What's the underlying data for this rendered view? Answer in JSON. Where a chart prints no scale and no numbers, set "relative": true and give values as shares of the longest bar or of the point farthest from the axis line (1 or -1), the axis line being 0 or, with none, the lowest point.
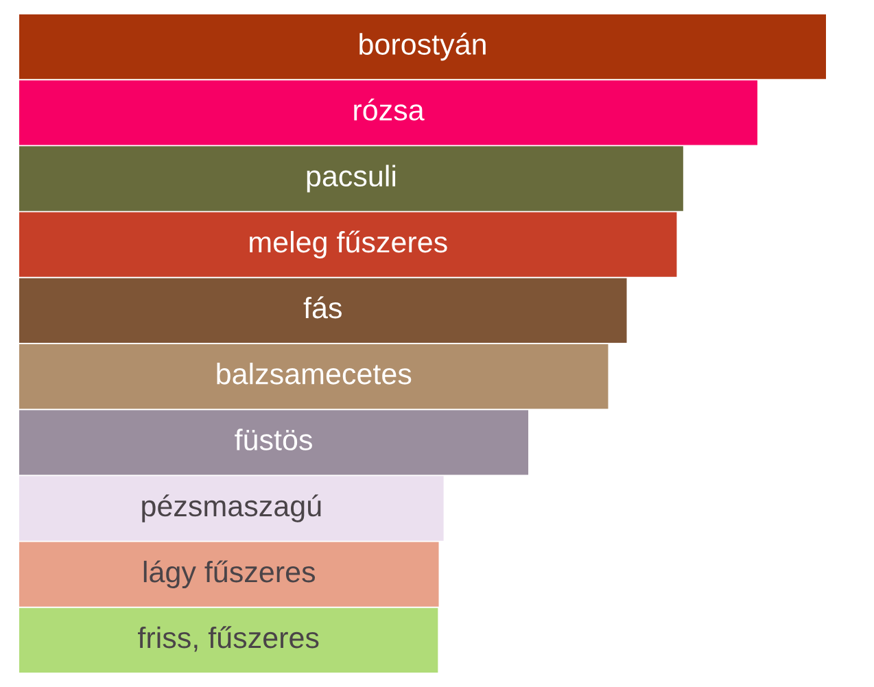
{
  "chart_data": {
    "type": "bar",
    "orientation": "horizontal",
    "relative": true,
    "categories": [
      "borostyán",
      "rózsa",
      "pacsuli",
      "meleg fűszeres",
      "fás",
      "balzsamecetes",
      "füstös",
      "pézsmaszagú",
      "lágy fűszeres",
      "friss, fűszeres"
    ],
    "values": [
      1,
      0.915,
      0.823,
      0.815,
      0.753,
      0.73,
      0.631,
      0.526,
      0.52,
      0.519
    ],
    "colors": [
      "#a8340a",
      "#f70065",
      "#686b3c",
      "#c63f28",
      "#7e5536",
      "#b08f6c",
      "#9a8e9e",
      "#ebe0ef",
      "#e8a189",
      "#b0dc78"
    ]
  }
}
